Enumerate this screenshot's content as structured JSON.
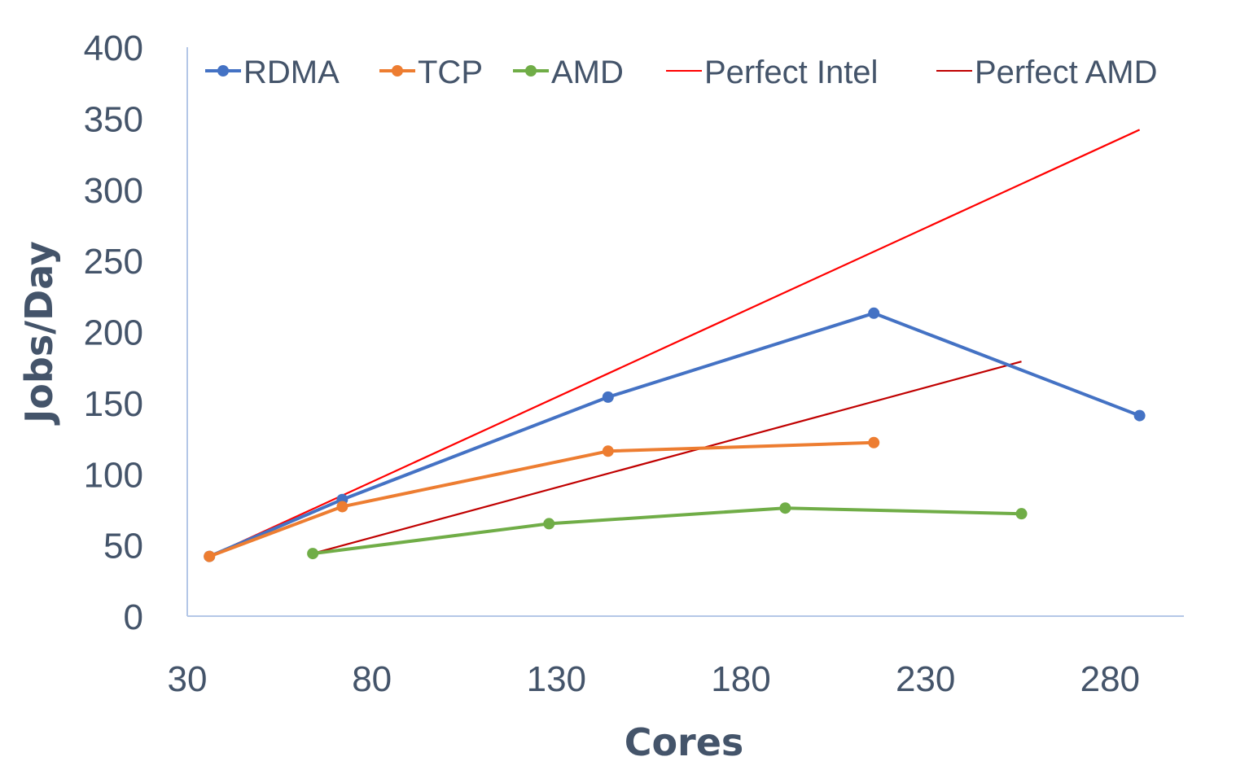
{
  "chart_data": {
    "type": "line",
    "xlabel": "Cores",
    "ylabel": "Jobs/Day",
    "xlim": [
      30,
      300
    ],
    "ylim": [
      0,
      400
    ],
    "x_ticks": [
      "30",
      "80",
      "130",
      "180",
      "230",
      "280"
    ],
    "y_ticks": [
      "0",
      "50",
      "100",
      "150",
      "200",
      "250",
      "300",
      "350",
      "400"
    ],
    "grid": false,
    "legend_position": "top",
    "series": [
      {
        "name": "RDMA",
        "color": "#4472c4",
        "markers": true,
        "x": [
          36,
          72,
          144,
          216,
          288
        ],
        "y": [
          42,
          82,
          154,
          213,
          141
        ]
      },
      {
        "name": "TCP",
        "color": "#ed7d31",
        "markers": true,
        "x": [
          36,
          72,
          144,
          216
        ],
        "y": [
          42,
          77,
          116,
          122
        ]
      },
      {
        "name": "AMD",
        "color": "#70ad47",
        "markers": true,
        "x": [
          64,
          128,
          192,
          256
        ],
        "y": [
          44,
          65,
          76,
          72
        ]
      },
      {
        "name": "Perfect Intel",
        "color": "#ff0000",
        "markers": false,
        "x": [
          36,
          288
        ],
        "y": [
          42,
          342
        ]
      },
      {
        "name": "Perfect AMD",
        "color": "#c00000",
        "markers": false,
        "x": [
          64,
          256
        ],
        "y": [
          44,
          179
        ]
      }
    ]
  }
}
